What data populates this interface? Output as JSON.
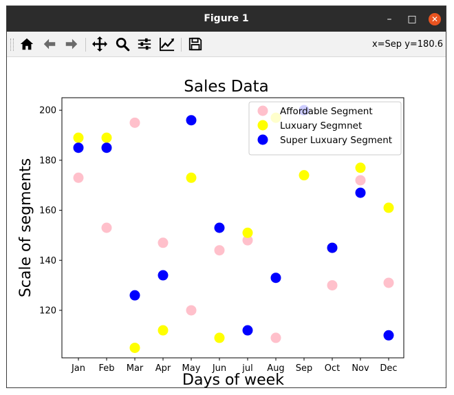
{
  "window": {
    "title": "Figure 1",
    "controls": {
      "minimize": "–",
      "maximize": "□",
      "close": "✕"
    }
  },
  "toolbar": {
    "buttons": [
      {
        "name": "home",
        "icon": "home-icon"
      },
      {
        "name": "back",
        "icon": "arrow-left-icon"
      },
      {
        "name": "forward",
        "icon": "arrow-right-icon"
      },
      {
        "name": "pan",
        "icon": "move-icon"
      },
      {
        "name": "zoom",
        "icon": "magnifier-icon"
      },
      {
        "name": "subplots",
        "icon": "sliders-icon"
      },
      {
        "name": "customize",
        "icon": "line-chart-icon"
      },
      {
        "name": "save",
        "icon": "floppy-disk-icon"
      }
    ],
    "coordinates": "x=Sep y=180.6"
  },
  "chart_data": {
    "type": "scatter",
    "title": "Sales Data",
    "xlabel": "Days of week",
    "ylabel": "Scale of segments",
    "categories": [
      "Jan",
      "Feb",
      "Mar",
      "Apr",
      "May",
      "Jun",
      "jul",
      "Aug",
      "Sep",
      "Oct",
      "Nov",
      "Dec"
    ],
    "ylim": [
      101,
      205
    ],
    "yticks": [
      120,
      140,
      160,
      180,
      200
    ],
    "grid": false,
    "legend_position": "top-right",
    "series": [
      {
        "name": "Affordable Segment",
        "color": "#ffc0cb",
        "values": [
          173,
          153,
          195,
          147,
          120,
          144,
          148,
          109,
          200,
          130,
          172,
          131
        ]
      },
      {
        "name": "Luxuary Segmnet",
        "color": "#ffff00",
        "values": [
          189,
          189,
          105,
          112,
          173,
          109,
          151,
          197,
          174,
          145,
          177,
          161
        ]
      },
      {
        "name": "Super Luxuary Segment",
        "color": "#0000ff",
        "values": [
          185,
          185,
          126,
          134,
          196,
          153,
          112,
          133,
          200,
          145,
          167,
          110
        ]
      }
    ]
  }
}
